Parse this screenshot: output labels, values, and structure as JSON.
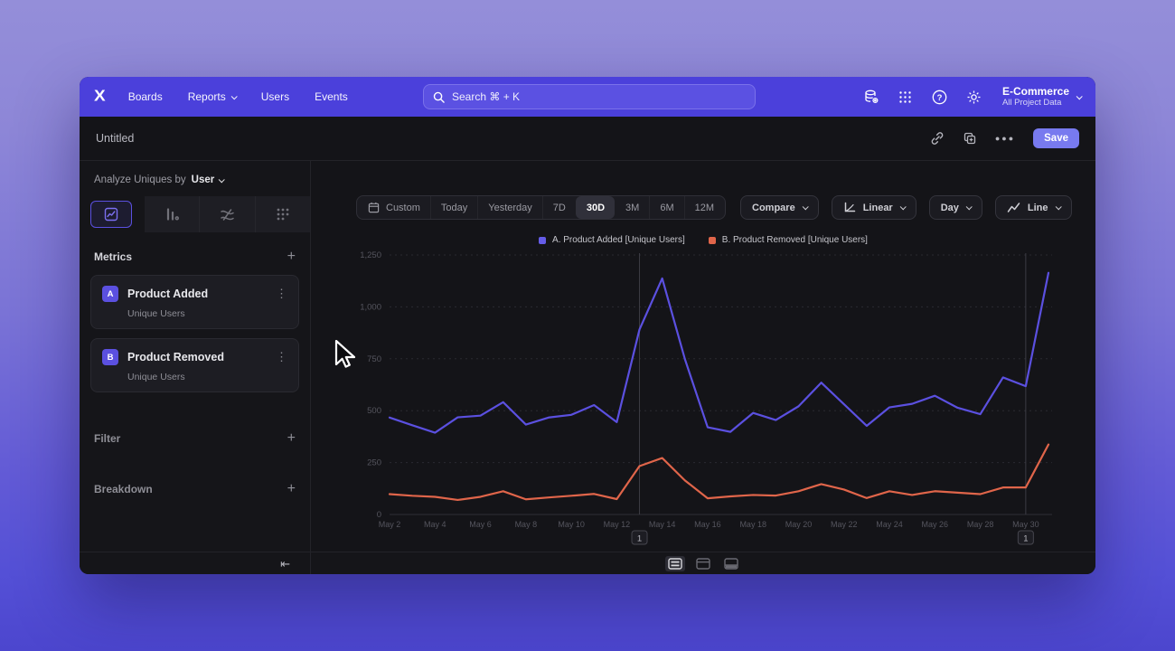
{
  "navbar": {
    "logo": "mixpanel-x-logo",
    "items": [
      "Boards",
      "Reports",
      "Users",
      "Events"
    ],
    "reports_has_dropdown": true,
    "search_placeholder": "Search  ⌘ + K",
    "project_name": "E-Commerce",
    "project_subtitle": "All Project Data"
  },
  "header": {
    "title": "Untitled",
    "more_label": "●●●",
    "save_label": "Save"
  },
  "sidebar": {
    "analyze_prefix": "Analyze Uniques by",
    "analyze_value": "User",
    "metrics_label": "Metrics",
    "filter_label": "Filter",
    "breakdown_label": "Breakdown",
    "metrics": [
      {
        "badge": "A",
        "name": "Product Added",
        "subtitle": "Unique Users"
      },
      {
        "badge": "B",
        "name": "Product Removed",
        "subtitle": "Unique Users"
      }
    ]
  },
  "toolbar": {
    "ranges": [
      "Custom",
      "Today",
      "Yesterday",
      "7D",
      "30D",
      "3M",
      "6M",
      "12M"
    ],
    "active_range": "30D",
    "compare_label": "Compare",
    "scale_label": "Linear",
    "interval_label": "Day",
    "chart_type_label": "Line"
  },
  "legend": [
    {
      "label": "A. Product Added [Unique Users]",
      "color": "#655CE8"
    },
    {
      "label": "B. Product Removed [Unique Users]",
      "color": "#E0654A"
    }
  ],
  "chart_data": {
    "type": "line",
    "x": [
      "May 2",
      "May 3",
      "May 4",
      "May 5",
      "May 6",
      "May 7",
      "May 8",
      "May 9",
      "May 10",
      "May 11",
      "May 12",
      "May 13",
      "May 14",
      "May 15",
      "May 16",
      "May 17",
      "May 18",
      "May 19",
      "May 20",
      "May 21",
      "May 22",
      "May 23",
      "May 24",
      "May 25",
      "May 26",
      "May 27",
      "May 28",
      "May 29",
      "May 30",
      "May 31"
    ],
    "x_tick_every": 2,
    "ylim": [
      0,
      1250
    ],
    "yticks": [
      0,
      250,
      500,
      750,
      1000,
      1250
    ],
    "ytick_labels": [
      "0",
      "250",
      "500",
      "750",
      "1,000",
      "1,250"
    ],
    "grid": "horizontal-dashed",
    "legend_position": "top-center",
    "series": [
      {
        "name": "A. Product Added [Unique Users]",
        "color": "#5B50E0",
        "values": [
          467,
          430,
          394,
          468,
          476,
          541,
          433,
          467,
          480,
          527,
          445,
          891,
          1137,
          748,
          420,
          398,
          489,
          455,
          521,
          635,
          531,
          427,
          516,
          533,
          572,
          514,
          483,
          660,
          618,
          1164
        ]
      },
      {
        "name": "B. Product Removed [Unique Users]",
        "color": "#E0654A",
        "values": [
          98,
          90,
          85,
          70,
          85,
          112,
          73,
          82,
          90,
          99,
          74,
          233,
          272,
          164,
          78,
          87,
          94,
          91,
          112,
          146,
          120,
          79,
          112,
          94,
          112,
          105,
          98,
          130,
          130,
          337
        ]
      }
    ],
    "annotations": [
      {
        "x": "May 13",
        "x_index": 11,
        "label": "1"
      },
      {
        "x": "May 30",
        "x_index": 28,
        "label": "1"
      }
    ]
  },
  "footer": {
    "layouts": [
      "split-rows-layout",
      "top-row-layout",
      "bottom-row-layout"
    ],
    "active_layout_index": 0
  }
}
